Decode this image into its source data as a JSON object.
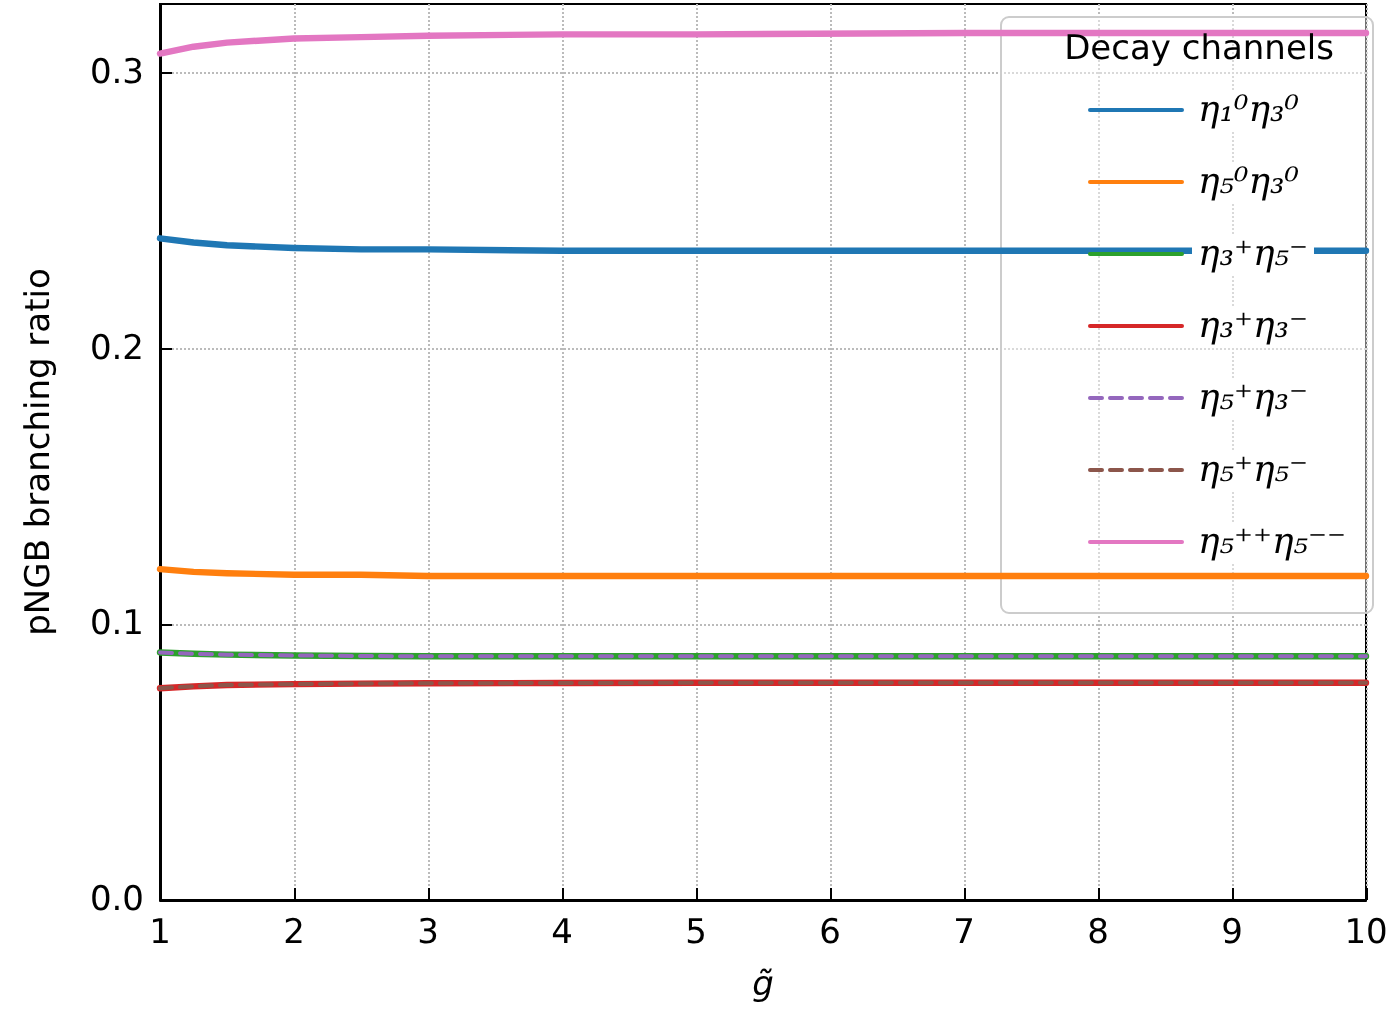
{
  "chart_data": {
    "type": "line",
    "xlabel": "g̃",
    "ylabel": "pNGB branching ratio",
    "legend_title": "Decay channels",
    "legend": "top right",
    "grid": true,
    "marker": "none",
    "x": [
      1,
      1.25,
      1.5,
      2,
      2.5,
      3,
      4,
      5,
      7,
      10
    ],
    "xlim": [
      1,
      10
    ],
    "xticks": [
      1,
      2,
      3,
      4,
      5,
      6,
      7,
      8,
      9,
      10
    ],
    "ylim": [
      0,
      0.325
    ],
    "yticks": [
      {
        "value": 0,
        "label": "0.0"
      },
      {
        "value": 0.1,
        "label": "0.1"
      },
      {
        "value": 0.2,
        "label": "0.2"
      },
      {
        "value": 0.3,
        "label": "0.3"
      }
    ],
    "series": [
      {
        "name": "η₁⁰η₃⁰",
        "color": "#1f77b4",
        "line_style": "solid",
        "values": [
          0.24,
          0.2385,
          0.2375,
          0.2365,
          0.236,
          0.236,
          0.2355,
          0.2355,
          0.2355,
          0.2355
        ]
      },
      {
        "name": "η₅⁰η₃⁰",
        "color": "#ff7f0e",
        "line_style": "solid",
        "values": [
          0.12,
          0.119,
          0.1185,
          0.118,
          0.118,
          0.1175,
          0.1175,
          0.1175,
          0.1175,
          0.1175
        ]
      },
      {
        "name": "η₃⁺η₅⁻",
        "color": "#2ca02c",
        "line_style": "solid",
        "values": [
          0.0898,
          0.0893,
          0.089,
          0.0887,
          0.0885,
          0.0884,
          0.0884,
          0.0884,
          0.0884,
          0.0884
        ]
      },
      {
        "name": "η₃⁺η₃⁻",
        "color": "#d62728",
        "line_style": "solid",
        "values": [
          0.0768,
          0.0775,
          0.078,
          0.0783,
          0.0785,
          0.0786,
          0.0787,
          0.0788,
          0.0788,
          0.0788
        ]
      },
      {
        "name": "η₅⁺η₃⁻",
        "color": "#9467bd",
        "line_style": "dashed",
        "values": [
          0.0898,
          0.0893,
          0.089,
          0.0887,
          0.0885,
          0.0884,
          0.0884,
          0.0884,
          0.0884,
          0.0884
        ]
      },
      {
        "name": "η₅⁺η₅⁻",
        "color": "#8c564b",
        "line_style": "dashed",
        "values": [
          0.0768,
          0.0775,
          0.078,
          0.0783,
          0.0785,
          0.0786,
          0.0787,
          0.0788,
          0.0788,
          0.0788
        ]
      },
      {
        "name": "η₅⁺⁺η₅⁻⁻",
        "color": "#e377c2",
        "line_style": "solid",
        "values": [
          0.307,
          0.3095,
          0.311,
          0.3125,
          0.313,
          0.3135,
          0.314,
          0.314,
          0.3145,
          0.3145
        ]
      }
    ]
  }
}
